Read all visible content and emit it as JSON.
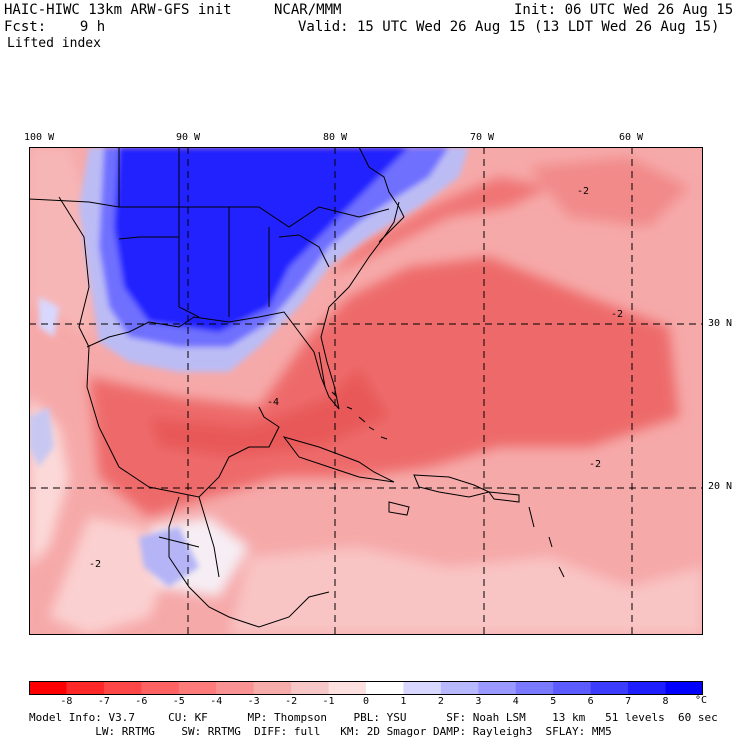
{
  "header": {
    "title": "HAIC-HIWC 13km ARW-GFS init",
    "org": "NCAR/MMM",
    "init": "Init: 06 UTC Wed 26 Aug 15",
    "fcst": "Fcst:    9 h",
    "valid": "Valid: 15 UTC Wed 26 Aug 15 (13 LDT Wed 26 Aug 15)",
    "field": "Lifted index"
  },
  "axes": {
    "lon_labels": [
      "100 W",
      "90 W",
      "80 W",
      "70 W",
      "60 W"
    ],
    "lat_labels": [
      "30 N",
      "20 N"
    ]
  },
  "map_labels": [
    "-2",
    "-4",
    "-2",
    "-2",
    "-2"
  ],
  "legend": {
    "labels": [
      "-8",
      "-7",
      "-6",
      "-5",
      "-4",
      "-3",
      "-2",
      "-1",
      "0",
      "1",
      "2",
      "3",
      "4",
      "5",
      "6",
      "7",
      "8"
    ],
    "unit": "°C",
    "colors": [
      "#ff0000",
      "#ff2828",
      "#ff4747",
      "#ff6262",
      "#fd7b7b",
      "#f99393",
      "#f7acac",
      "#f7c6c6",
      "#fde0e0",
      "#ffffff",
      "#d7d7ff",
      "#b8b8ff",
      "#9999ff",
      "#7a7aff",
      "#5b5bff",
      "#3c3cff",
      "#1e1eff",
      "#0000ff"
    ]
  },
  "model_info": {
    "line1": "Model Info: V3.7     CU: KF      MP: Thompson    PBL: YSU      SF: Noah LSM    13 km   51 levels  60 sec",
    "line2": "          LW: RRTMG    SW: RRTMG  DIFF: full   KM: 2D Smagor DAMP: Rayleigh3  SFLAY: MM5"
  }
}
